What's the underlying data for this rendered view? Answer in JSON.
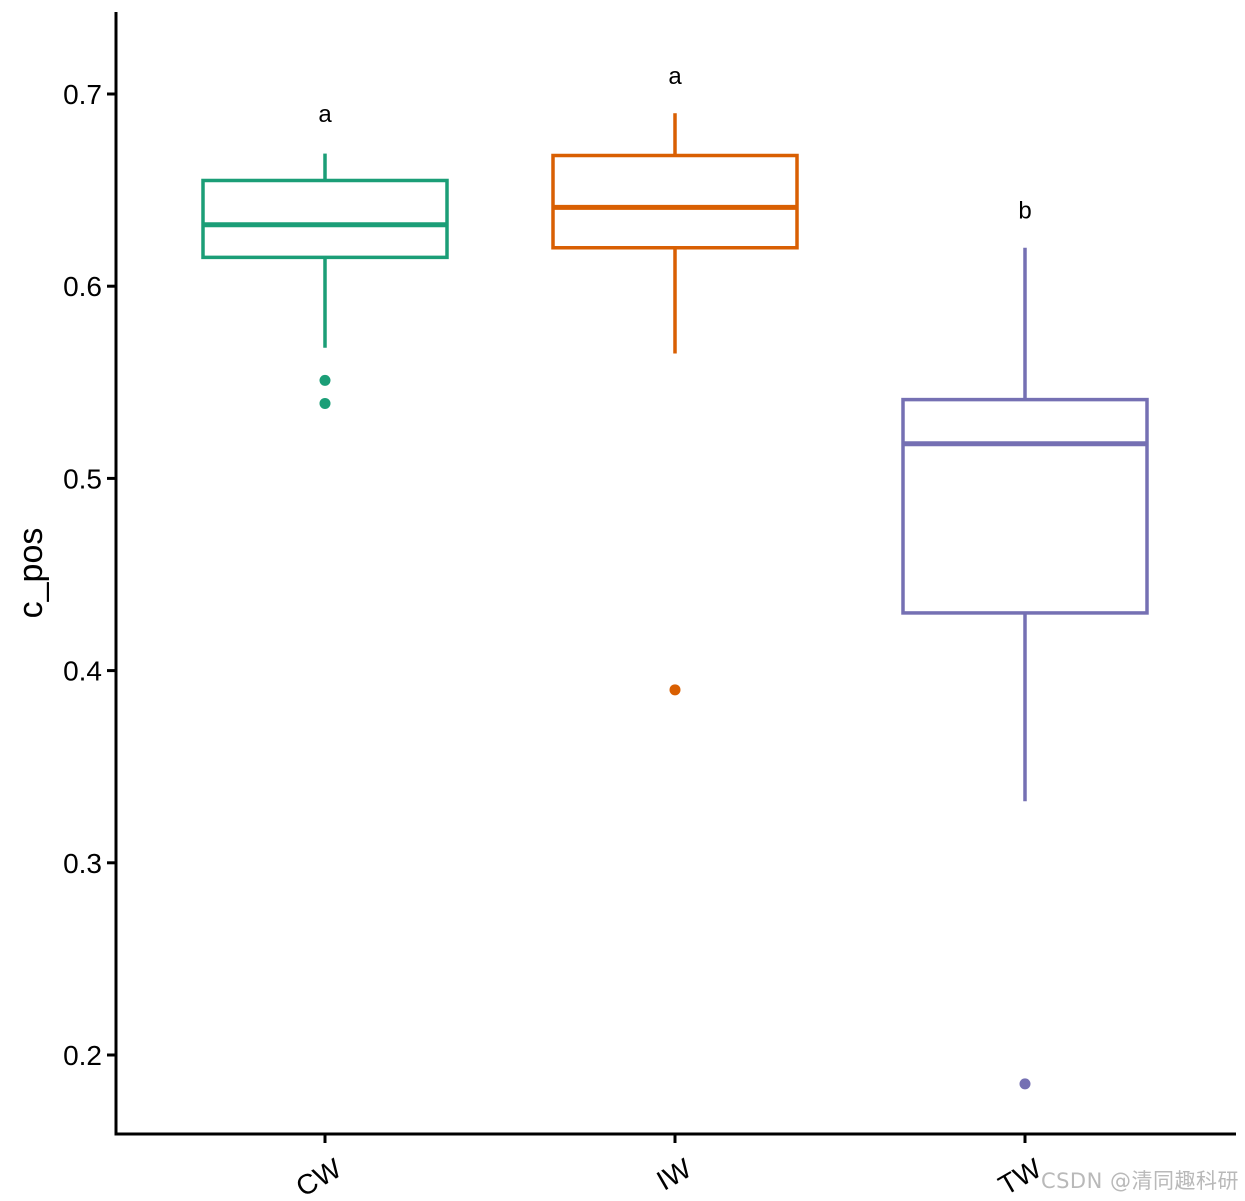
{
  "chart_data": {
    "type": "box",
    "title": "",
    "xlabel": "",
    "ylabel": "c_pos",
    "ylim": [
      0.16,
      0.74
    ],
    "yticks": [
      0.2,
      0.3,
      0.4,
      0.5,
      0.6,
      0.7
    ],
    "ytick_labels": [
      "0.2",
      "0.3",
      "0.4",
      "0.5",
      "0.6",
      "0.7"
    ],
    "categories": [
      "CW",
      "IW",
      "TW"
    ],
    "grid": false,
    "legend": "none",
    "groups": [
      {
        "name": "CW",
        "color": "#1b9e77",
        "whisker_low": 0.568,
        "q1": 0.615,
        "median": 0.632,
        "q3": 0.655,
        "whisker_high": 0.669,
        "outliers": [
          0.551,
          0.539
        ],
        "sig_letter": "a",
        "sig_y": 0.69
      },
      {
        "name": "IW",
        "color": "#d95f02",
        "whisker_low": 0.565,
        "q1": 0.62,
        "median": 0.641,
        "q3": 0.668,
        "whisker_high": 0.69,
        "outliers": [
          0.39
        ],
        "sig_letter": "a",
        "sig_y": 0.71
      },
      {
        "name": "TW",
        "color": "#7570b3",
        "whisker_low": 0.332,
        "q1": 0.43,
        "median": 0.518,
        "q3": 0.541,
        "whisker_high": 0.62,
        "outliers": [
          0.185
        ],
        "sig_letter": "b",
        "sig_y": 0.64
      }
    ]
  },
  "watermark": {
    "text": "CSDN @清同趣科研"
  }
}
